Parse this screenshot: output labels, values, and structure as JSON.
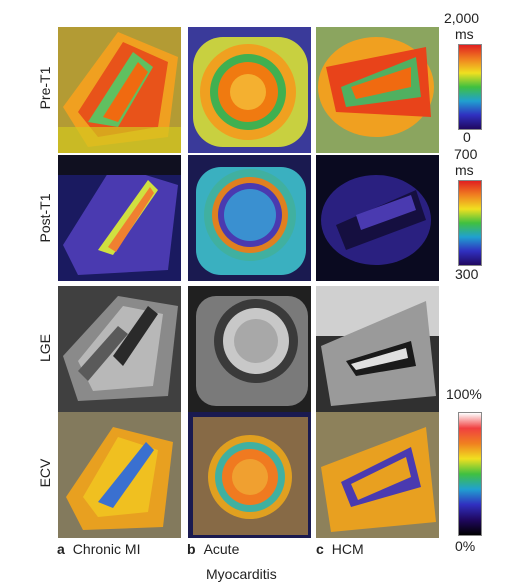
{
  "rows": {
    "pre_t1": "Pre-T1",
    "post_t1": "Post-T1",
    "lge": "LGE",
    "ecv": "ECV"
  },
  "columns": [
    {
      "letter": "a",
      "label": "Chronic MI"
    },
    {
      "letter": "b",
      "label": "Acute"
    },
    {
      "letter": "c",
      "label": "HCM"
    }
  ],
  "footer": "Myocarditis",
  "colorbars": {
    "pre_t1": {
      "max": "2,000",
      "unit": "ms",
      "min": "0"
    },
    "post_t1": {
      "max": "700",
      "unit": "ms",
      "min": "300"
    },
    "ecv": {
      "max": "100%",
      "min": "0%"
    }
  }
}
